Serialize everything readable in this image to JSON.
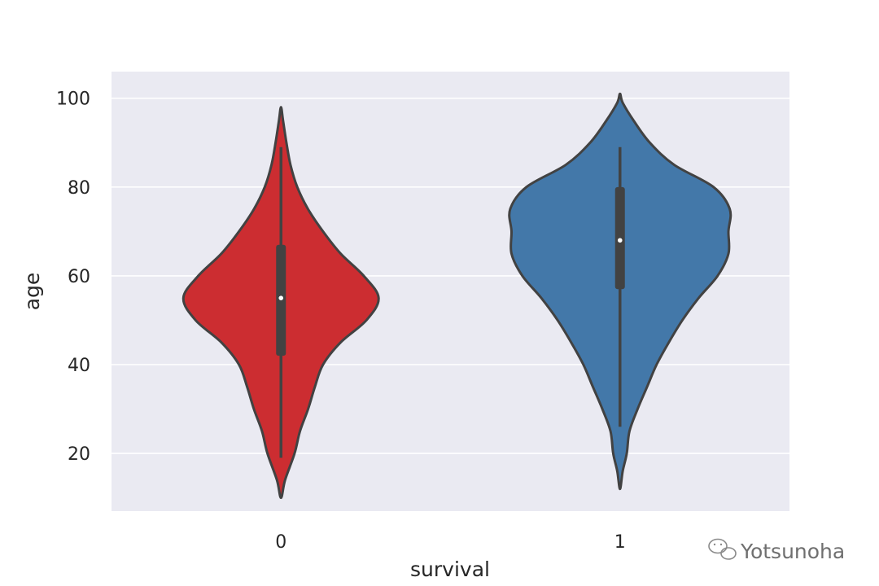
{
  "chart_data": {
    "type": "violin",
    "title": "",
    "xlabel": "survival",
    "ylabel": "age",
    "categories": [
      "0",
      "1"
    ],
    "ylim": [
      7,
      106
    ],
    "yticks": [
      20,
      40,
      60,
      80,
      100
    ],
    "grid": true,
    "legend": "none",
    "violins": [
      {
        "category": "0",
        "color": "#cc2d31",
        "min": 19,
        "q1": 42,
        "median": 55,
        "q3": 67,
        "max": 89,
        "kde_min": 10,
        "kde_max": 98,
        "profile": [
          [
            10,
            0.0
          ],
          [
            14,
            0.03
          ],
          [
            20,
            0.1
          ],
          [
            25,
            0.14
          ],
          [
            30,
            0.2
          ],
          [
            35,
            0.25
          ],
          [
            40,
            0.31
          ],
          [
            45,
            0.44
          ],
          [
            50,
            0.63
          ],
          [
            55,
            0.72
          ],
          [
            60,
            0.61
          ],
          [
            65,
            0.44
          ],
          [
            70,
            0.31
          ],
          [
            75,
            0.2
          ],
          [
            80,
            0.12
          ],
          [
            85,
            0.07
          ],
          [
            90,
            0.04
          ],
          [
            95,
            0.015
          ],
          [
            98,
            0.0
          ]
        ]
      },
      {
        "category": "1",
        "color": "#4378a9",
        "min": 26,
        "q1": 57,
        "median": 68,
        "q3": 80,
        "max": 89,
        "kde_min": 12,
        "kde_max": 101,
        "profile": [
          [
            12,
            0.0
          ],
          [
            16,
            0.02
          ],
          [
            20,
            0.05
          ],
          [
            25,
            0.07
          ],
          [
            30,
            0.13
          ],
          [
            35,
            0.2
          ],
          [
            40,
            0.27
          ],
          [
            45,
            0.36
          ],
          [
            50,
            0.46
          ],
          [
            55,
            0.58
          ],
          [
            60,
            0.72
          ],
          [
            65,
            0.8
          ],
          [
            70,
            0.8
          ],
          [
            75,
            0.81
          ],
          [
            80,
            0.69
          ],
          [
            85,
            0.4
          ],
          [
            90,
            0.22
          ],
          [
            95,
            0.1
          ],
          [
            99,
            0.02
          ],
          [
            101,
            0.0
          ]
        ]
      }
    ]
  },
  "watermark": {
    "text": "Yotsunoha",
    "icon": "wechat-icon"
  }
}
